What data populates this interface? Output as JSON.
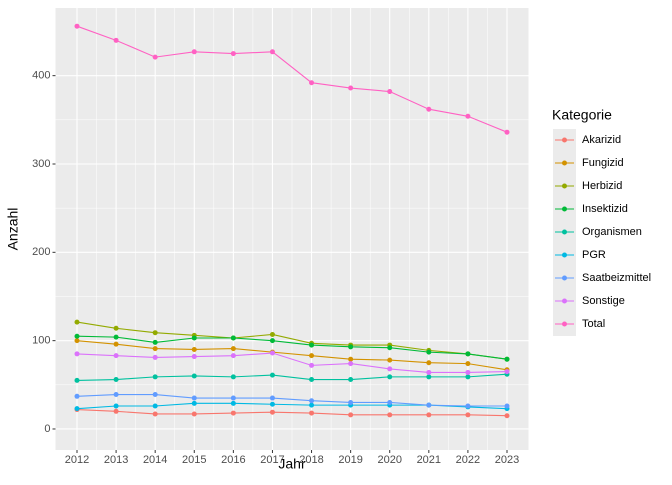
{
  "chart_data": {
    "type": "line",
    "x_label": "Jahr",
    "y_label": "Anzahl",
    "x": [
      2012,
      2013,
      2014,
      2015,
      2016,
      2017,
      2018,
      2019,
      2020,
      2021,
      2022,
      2023
    ],
    "xlim": [
      2011.45,
      2023.55
    ],
    "xticks": [
      2012,
      2013,
      2014,
      2015,
      2016,
      2017,
      2018,
      2019,
      2020,
      2021,
      2022,
      2023
    ],
    "ylim": [
      -23.8,
      476.6
    ],
    "yticks": [
      0,
      100,
      200,
      300,
      400
    ],
    "grid": true,
    "legend_title": "Kategorie",
    "legend_position": "right",
    "series": [
      {
        "name": "Akarizid",
        "color": "#F8766D",
        "values": [
          22,
          20,
          17,
          17,
          18,
          19,
          18,
          16,
          16,
          16,
          16,
          15
        ]
      },
      {
        "name": "Fungizid",
        "color": "#D39200",
        "values": [
          100,
          96,
          91,
          90,
          91,
          87,
          83,
          79,
          78,
          75,
          74,
          67
        ]
      },
      {
        "name": "Herbizid",
        "color": "#93AA00",
        "values": [
          121,
          114,
          109,
          106,
          103,
          107,
          97,
          95,
          95,
          89,
          85,
          79
        ]
      },
      {
        "name": "Insektizid",
        "color": "#00BA38",
        "values": [
          105,
          104,
          98,
          103,
          103,
          100,
          95,
          93,
          92,
          87,
          85,
          79
        ]
      },
      {
        "name": "Organismen",
        "color": "#00C19F",
        "values": [
          55,
          56,
          59,
          60,
          59,
          61,
          56,
          56,
          59,
          59,
          59,
          62
        ]
      },
      {
        "name": "PGR",
        "color": "#00B9E3",
        "values": [
          23,
          26,
          26,
          29,
          29,
          28,
          27,
          27,
          27,
          27,
          25,
          23
        ]
      },
      {
        "name": "Saatbeizmittel",
        "color": "#619CFF",
        "values": [
          37,
          39,
          39,
          35,
          35,
          35,
          32,
          30,
          30,
          27,
          26,
          26
        ]
      },
      {
        "name": "Sonstige",
        "color": "#DB72FB",
        "values": [
          85,
          83,
          81,
          82,
          83,
          86,
          72,
          74,
          68,
          64,
          64,
          65
        ]
      },
      {
        "name": "Total",
        "color": "#FF61C3",
        "values": [
          456,
          440,
          421,
          427,
          425,
          427,
          392,
          386,
          382,
          362,
          354,
          336
        ]
      }
    ]
  }
}
